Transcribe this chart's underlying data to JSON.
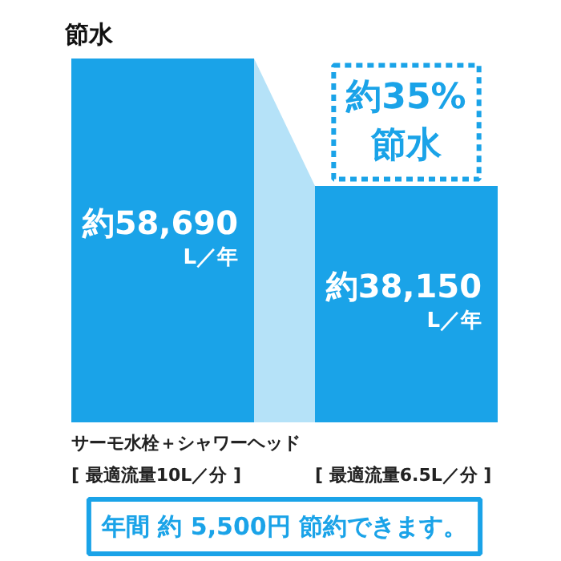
{
  "chart_data": {
    "type": "bar",
    "title": "節水",
    "categories": [
      "サーモ水栓＋シャワーヘッド\n[ 最適流量10L／分 ]",
      "[ 最適流量6.5L／分 ]"
    ],
    "values": [
      58690,
      38150
    ],
    "value_labels": [
      "約58,690\nL／年",
      "約38,150\nL／年"
    ],
    "color": "#1aa3e8",
    "annotations": [
      "約35%\n節水",
      "年間 約 5,500円 節約できます。"
    ]
  }
}
